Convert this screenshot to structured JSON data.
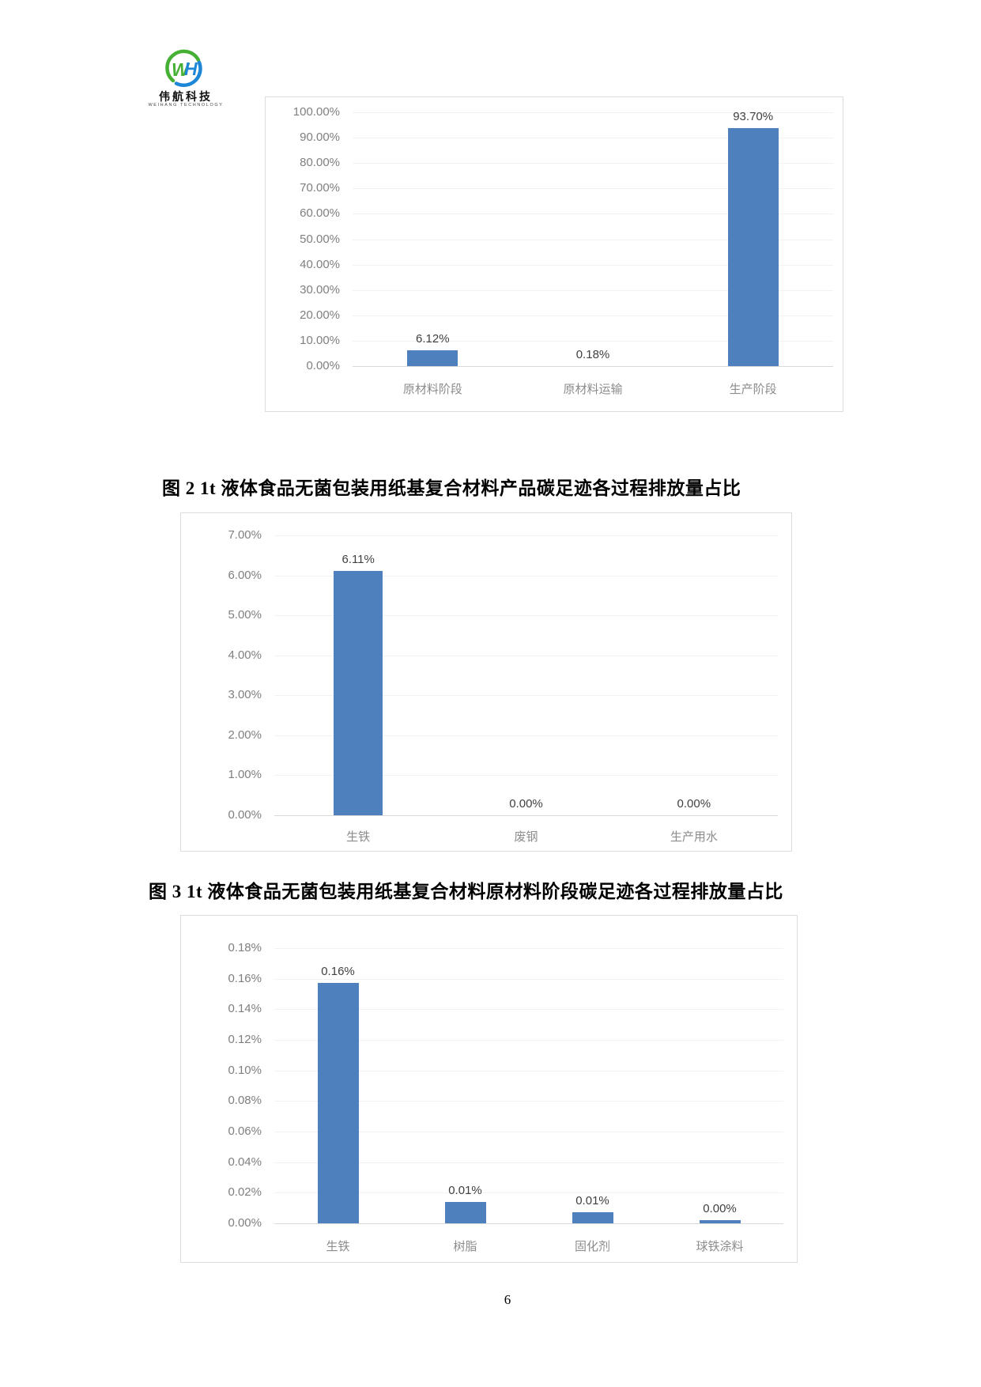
{
  "page": {
    "number": "6"
  },
  "logo": {
    "brand_cn": "伟航科技",
    "brand_en": "WEIHANG TECHNOLOGY",
    "monogram_left": "W",
    "monogram_right": "H",
    "green": "#46b035",
    "blue": "#1e86d6"
  },
  "colors": {
    "bar": "#4e80bd",
    "grid": "#f2f2f2",
    "axis": "#d9d9d9",
    "tick_label": "#7f7f7f",
    "category_label": "#8c8c8c",
    "value_label": "#3f3f3f",
    "box_border": "#dcdcdc"
  },
  "chart_data": [
    {
      "type": "bar",
      "title": "图 2  1t 液体食品无菌包装用纸基复合材料产品碳足迹各过程排放量占比",
      "categories": [
        "原材料阶段",
        "原材料运输",
        "生产阶段"
      ],
      "values": [
        6.12,
        0.18,
        93.7
      ],
      "labels": [
        "6.12%",
        "0.18%",
        "93.70%"
      ],
      "xlabel": "",
      "ylabel": "",
      "ylim": [
        0,
        100
      ],
      "ytick_step": 10,
      "ytick_format": "0.00%",
      "grid": true,
      "legend": "none"
    },
    {
      "type": "bar",
      "title": "图 3  1t 液体食品无菌包装用纸基复合材料原材料阶段碳足迹各过程排放量占比",
      "categories": [
        "生铁",
        "废钢",
        "生产用水"
      ],
      "values": [
        6.11,
        0.0,
        0.0
      ],
      "labels": [
        "6.11%",
        "0.00%",
        "0.00%"
      ],
      "xlabel": "",
      "ylabel": "",
      "ylim": [
        0,
        7
      ],
      "ytick_step": 1,
      "ytick_format": "0.00%",
      "grid": true,
      "legend": "none"
    },
    {
      "type": "bar",
      "categories": [
        "生铁",
        "树脂",
        "固化剂",
        "球铁涂料"
      ],
      "values": [
        0.157,
        0.014,
        0.007,
        0.002
      ],
      "labels": [
        "0.16%",
        "0.01%",
        "0.01%",
        "0.00%"
      ],
      "xlabel": "",
      "ylabel": "",
      "ylim": [
        0,
        0.18
      ],
      "ytick_step": 0.02,
      "ytick_format": "0.00%",
      "grid": true,
      "legend": "none"
    }
  ]
}
